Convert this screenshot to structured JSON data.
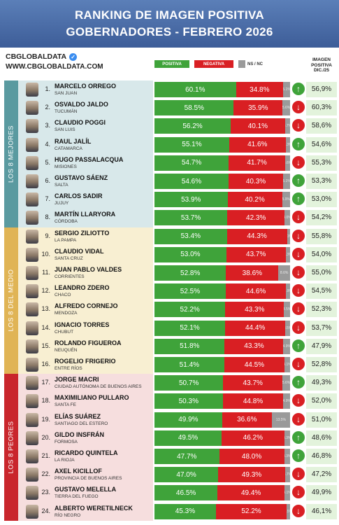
{
  "header": {
    "line1": "RANKING DE IMAGEN POSITIVA",
    "line2": "GOBERNADORES - FEBRERO 2026"
  },
  "brand": {
    "name": "CBGLOBALDATA",
    "url": "WWW.CBGLOBALDATA.COM"
  },
  "legend": {
    "positive": "POSITIVA",
    "negative": "NEGATIVA",
    "nsnc": "NS / NC"
  },
  "image_header": {
    "line1": "IMAGEN",
    "line2": "POSITIVA",
    "line3": "DIC./25"
  },
  "colors": {
    "positive": "#3fa33a",
    "negative": "#d91f23",
    "nsnc": "#9a9a9a",
    "group_best": "#5a9aa0",
    "group_mid": "#e0b455",
    "group_worst": "#c9262c"
  },
  "groups": [
    {
      "label": "LOS 8 MEJORES",
      "color": "#5a9aa0",
      "bg": "#d8e8ea",
      "from": 0,
      "to": 7
    },
    {
      "label": "LOS 8 DEL MEDIO",
      "color": "#e0b455",
      "bg": "#f8efd2",
      "from": 8,
      "to": 15
    },
    {
      "label": "LOS 8 PEORES",
      "color": "#c9262c",
      "bg": "#f6dede",
      "from": 16,
      "to": 23
    }
  ],
  "chart_data": {
    "type": "bar",
    "stacked": true,
    "title": "RANKING DE IMAGEN POSITIVA GOBERNADORES - FEBRERO 2026",
    "series_names": [
      "POSITIVA",
      "NEGATIVA",
      "NS / NC"
    ],
    "rows": [
      {
        "rank": "1.",
        "name": "MARCELO ORREGO",
        "province": "SAN JUAN",
        "positive": 60.1,
        "negative": 34.8,
        "nsnc": 5.1,
        "positive_label": "60.1%",
        "negative_label": "34.8%",
        "nsnc_label": "5.1%",
        "trend": "up",
        "dec": "56,9%"
      },
      {
        "rank": "2.",
        "name": "OSVALDO JALDO",
        "province": "TUCUMÁN",
        "positive": 58.5,
        "negative": 35.9,
        "nsnc": 5.6,
        "positive_label": "58.5%",
        "negative_label": "35.9%",
        "nsnc_label": "5.6%",
        "trend": "down",
        "dec": "60,3%"
      },
      {
        "rank": "3.",
        "name": "CLAUDIO POGGI",
        "province": "SAN LUIS",
        "positive": 56.2,
        "negative": 40.1,
        "nsnc": 3.7,
        "positive_label": "56.2%",
        "negative_label": "40.1%",
        "nsnc_label": "3.7%",
        "trend": "down",
        "dec": "58,6%"
      },
      {
        "rank": "4.",
        "name": "RAUL JALÍL",
        "province": "CATAMARCA",
        "positive": 55.1,
        "negative": 41.6,
        "nsnc": 3.3,
        "positive_label": "55.1%",
        "negative_label": "41.6%",
        "nsnc_label": "3.3%",
        "trend": "up",
        "dec": "54,6%"
      },
      {
        "rank": "5.",
        "name": "HUGO PASSALACQUA",
        "province": "MISIONES",
        "positive": 54.7,
        "negative": 41.7,
        "nsnc": 3.6,
        "positive_label": "54.7%",
        "negative_label": "41.7%",
        "nsnc_label": "3.6%",
        "trend": "down",
        "dec": "55,3%"
      },
      {
        "rank": "6.",
        "name": "GUSTAVO SÁENZ",
        "province": "SALTA",
        "positive": 54.6,
        "negative": 40.3,
        "nsnc": 5.1,
        "positive_label": "54.6%",
        "negative_label": "40.3%",
        "nsnc_label": "5.1%",
        "trend": "up",
        "dec": "53,3%"
      },
      {
        "rank": "7.",
        "name": "CARLOS SADIR",
        "province": "JUJUY",
        "positive": 53.9,
        "negative": 40.2,
        "nsnc": 5.9,
        "positive_label": "53.9%",
        "negative_label": "40.2%",
        "nsnc_label": "5.9%",
        "trend": "up",
        "dec": "53,0%"
      },
      {
        "rank": "8.",
        "name": "MARTÍN LLARYORA",
        "province": "CÓRDOBA",
        "positive": 53.7,
        "negative": 42.3,
        "nsnc": 4.0,
        "positive_label": "53.7%",
        "negative_label": "42.3%",
        "nsnc_label": "4.0%",
        "trend": "down",
        "dec": "54,2%"
      },
      {
        "rank": "9.",
        "name": "SERGIO ZILIOTTO",
        "province": "LA PAMPA",
        "positive": 53.4,
        "negative": 44.3,
        "nsnc": 2.3,
        "positive_label": "53.4%",
        "negative_label": "44.3%",
        "nsnc_label": "2.3%",
        "trend": "down",
        "dec": "55,8%"
      },
      {
        "rank": "10.",
        "name": "CLAUDIO VIDAL",
        "province": "SANTA CRUZ",
        "positive": 53.0,
        "negative": 43.7,
        "nsnc": 3.3,
        "positive_label": "53.0%",
        "negative_label": "43.7%",
        "nsnc_label": "3.3%",
        "trend": "down",
        "dec": "54,0%"
      },
      {
        "rank": "11.",
        "name": "JUAN PABLO VALDES",
        "province": "CORRIENTES",
        "positive": 52.8,
        "negative": 38.6,
        "nsnc": 8.6,
        "positive_label": "52.8%",
        "negative_label": "38.6%",
        "nsnc_label": "8.6%",
        "trend": "down",
        "dec": "55,0%"
      },
      {
        "rank": "12.",
        "name": "LEANDRO ZDERO",
        "province": "CHACO",
        "positive": 52.5,
        "negative": 44.6,
        "nsnc": 2.9,
        "positive_label": "52.5%",
        "negative_label": "44.6%",
        "nsnc_label": "2.9%",
        "trend": "down",
        "dec": "54,5%"
      },
      {
        "rank": "13.",
        "name": "ALFREDO CORNEJO",
        "province": "MENDOZA",
        "positive": 52.2,
        "negative": 43.3,
        "nsnc": 4.5,
        "positive_label": "52.2%",
        "negative_label": "43.3%",
        "nsnc_label": "4.5%",
        "trend": "down",
        "dec": "52,3%"
      },
      {
        "rank": "14.",
        "name": "IGNACIO TORRES",
        "province": "CHUBUT",
        "positive": 52.1,
        "negative": 44.4,
        "nsnc": 3.5,
        "positive_label": "52.1%",
        "negative_label": "44.4%",
        "nsnc_label": "3.5%",
        "trend": "down",
        "dec": "53,7%"
      },
      {
        "rank": "15.",
        "name": "ROLANDO FIGUEROA",
        "province": "NEUQUÉN",
        "positive": 51.8,
        "negative": 43.3,
        "nsnc": 4.9,
        "positive_label": "51.8%",
        "negative_label": "43.3%",
        "nsnc_label": "4.9%",
        "trend": "up",
        "dec": "47,9%"
      },
      {
        "rank": "16.",
        "name": "ROGELIO FRIGERIO",
        "province": "ENTRE RÍOS",
        "positive": 51.4,
        "negative": 44.5,
        "nsnc": 4.1,
        "positive_label": "51.4%",
        "negative_label": "44.5%",
        "nsnc_label": "4.1%",
        "trend": "down",
        "dec": "52,8%"
      },
      {
        "rank": "17.",
        "name": "JORGE MACRI",
        "province": "CIUDAD AUTÓNOMA DE BUENOS AIRES",
        "positive": 50.7,
        "negative": 43.7,
        "nsnc": 5.6,
        "positive_label": "50.7%",
        "negative_label": "43.7%",
        "nsnc_label": "5.6%",
        "trend": "up",
        "dec": "49,3%"
      },
      {
        "rank": "18.",
        "name": "MAXIMILIANO PULLARO",
        "province": "SANTA FE",
        "positive": 50.3,
        "negative": 44.8,
        "nsnc": 4.9,
        "positive_label": "50.3%",
        "negative_label": "44.8%",
        "nsnc_label": "4.9%",
        "trend": "down",
        "dec": "52,0%"
      },
      {
        "rank": "19.",
        "name": "ELÍAS SUÁREZ",
        "province": "SANTIAGO DEL ESTERO",
        "positive": 49.9,
        "negative": 36.6,
        "nsnc": 13.5,
        "positive_label": "49.9%",
        "negative_label": "36.6%",
        "nsnc_label": "13.5%",
        "trend": "down",
        "dec": "51,0%"
      },
      {
        "rank": "20.",
        "name": "GILDO INSFRÁN",
        "province": "FORMOSA",
        "positive": 49.5,
        "negative": 46.2,
        "nsnc": 4.3,
        "positive_label": "49.5%",
        "negative_label": "46.2%",
        "nsnc_label": "4.3%",
        "trend": "up",
        "dec": "48,6%"
      },
      {
        "rank": "21.",
        "name": "RICARDO QUINTELA",
        "province": "LA RIOJA",
        "positive": 47.7,
        "negative": 48.0,
        "nsnc": 4.3,
        "positive_label": "47.7%",
        "negative_label": "48.0%",
        "nsnc_label": "4.3%",
        "trend": "up",
        "dec": "46,8%"
      },
      {
        "rank": "22.",
        "name": "AXEL KICILLOF",
        "province": "PROVINCIA DE BUENOS AIRES",
        "positive": 47.0,
        "negative": 49.3,
        "nsnc": 3.7,
        "positive_label": "47.0%",
        "negative_label": "49.3%",
        "nsnc_label": "3.7%",
        "trend": "down",
        "dec": "47,2%"
      },
      {
        "rank": "23.",
        "name": "GUSTAVO MELELLA",
        "province": "TIERRA DEL FUEGO",
        "positive": 46.5,
        "negative": 49.4,
        "nsnc": 4.1,
        "positive_label": "46.5%",
        "negative_label": "49.4%",
        "nsnc_label": "4.1%",
        "trend": "down",
        "dec": "49,9%"
      },
      {
        "rank": "24.",
        "name": "ALBERTO WERETILNECK",
        "province": "RÍO NEGRO",
        "positive": 45.3,
        "negative": 52.2,
        "nsnc": 2.5,
        "positive_label": "45.3%",
        "negative_label": "52.2%",
        "nsnc_label": "2.5%",
        "trend": "down",
        "dec": "46,1%"
      }
    ]
  }
}
